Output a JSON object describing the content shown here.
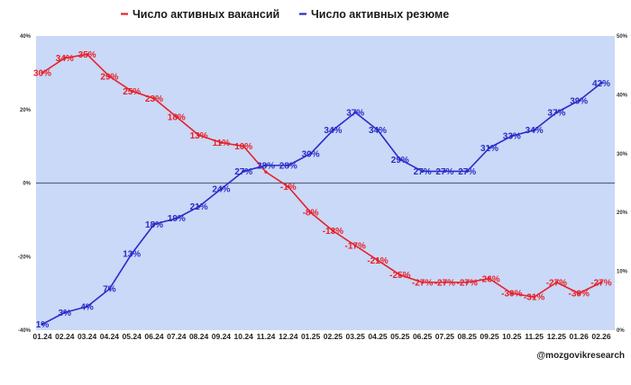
{
  "chart_data": {
    "type": "line",
    "categories": [
      "01.24",
      "02.24",
      "03.24",
      "04.24",
      "05.24",
      "06.24",
      "07.24",
      "08.24",
      "09.24",
      "10.24",
      "11.24",
      "12.24",
      "01.25",
      "02.25",
      "03.25",
      "04.25",
      "05.25",
      "06.25",
      "07.25",
      "08.25",
      "09.25",
      "10.25",
      "11.25",
      "12.25",
      "01.26",
      "02.26"
    ],
    "series": [
      {
        "name": "Число активных вакансий",
        "axis": "left",
        "color": "#e8202a",
        "values": [
          30,
          34,
          35,
          29,
          25,
          23,
          18,
          13,
          11,
          10,
          3,
          -1,
          -8,
          -13,
          -17,
          -21,
          -25,
          -27,
          -27,
          -27,
          -26,
          -30,
          -31,
          -27,
          -30,
          -27
        ],
        "labels": [
          "30%",
          "34%",
          "35%",
          "29%",
          "25%",
          "23%",
          "18%",
          "13%",
          "11%",
          "10%",
          "",
          "-1%",
          "-8%",
          "-13%",
          "-17%",
          "-21%",
          "-25%",
          "-27%",
          "-27%",
          "-27%",
          "-26%",
          "-30%",
          "-31%",
          "-27%",
          "-30%",
          "-27%"
        ]
      },
      {
        "name": "Число активных резюме",
        "axis": "right",
        "color": "#2b2bc8",
        "values": [
          1,
          3,
          4,
          7,
          13,
          18,
          19,
          21,
          24,
          27,
          28,
          28,
          30,
          34,
          37,
          34,
          29,
          27,
          27,
          27,
          31,
          33,
          34,
          37,
          39,
          42
        ],
        "labels": [
          "1%",
          "3%",
          "4%",
          "7%",
          "13%",
          "18%",
          "19%",
          "21%",
          "24%",
          "27%",
          "28%",
          "28%",
          "30%",
          "34%",
          "37%",
          "34%",
          "29%",
          "27%",
          "27%",
          "27%",
          "31%",
          "33%",
          "34%",
          "37%",
          "39%",
          "42%"
        ]
      }
    ],
    "y_left": {
      "ylim": [
        -40,
        40
      ],
      "ticks": [
        "40%",
        "20%",
        "0%",
        "-20%",
        "-40%"
      ]
    },
    "y_right": {
      "ylim": [
        0,
        50
      ],
      "ticks": [
        "50%",
        "40%",
        "30%",
        "20%",
        "10%",
        "0%"
      ]
    },
    "zero_line": true,
    "grid": false,
    "legend_position": "top-center",
    "background_color": "#c9d9f7",
    "title": "",
    "xlabel": "",
    "ylabel": ""
  },
  "watermark": "@mozgovikresearch"
}
